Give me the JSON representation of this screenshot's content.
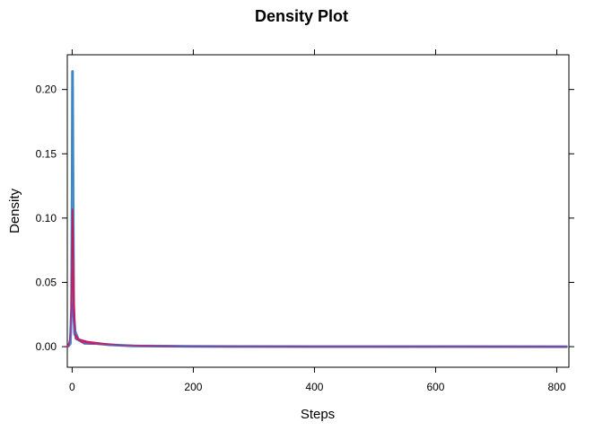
{
  "chart_data": {
    "type": "line",
    "title": "Density Plot",
    "xlabel": "Steps",
    "ylabel": "Density",
    "xlim": [
      -8,
      820
    ],
    "ylim": [
      -0.016,
      0.227
    ],
    "xticks": [
      0,
      200,
      400,
      600,
      800
    ],
    "xtick_labels": [
      "0",
      "200",
      "400",
      "600",
      "800"
    ],
    "yticks": [
      0.0,
      0.05,
      0.1,
      0.15,
      0.2
    ],
    "ytick_labels": [
      "0.00",
      "0.05",
      "0.10",
      "0.15",
      "0.20"
    ],
    "legend": "none",
    "grid": false,
    "series": [
      {
        "color": "#3a88c8",
        "width": 3,
        "points": [
          [
            -7,
            0.0002
          ],
          [
            -3,
            0.003
          ],
          [
            -1,
            0.03
          ],
          [
            0,
            0.12
          ],
          [
            0.6,
            0.214
          ],
          [
            1.2,
            0.15
          ],
          [
            2.5,
            0.03
          ],
          [
            4,
            0.01
          ],
          [
            8,
            0.006
          ],
          [
            20,
            0.003
          ],
          [
            40,
            0.0025
          ],
          [
            60,
            0.0015
          ],
          [
            100,
            0.0006
          ],
          [
            200,
            0.0002
          ],
          [
            400,
            0.0001
          ],
          [
            600,
            0.0001
          ],
          [
            816,
            0.0
          ]
        ]
      },
      {
        "color": "#4a8ed0",
        "width": 1.5,
        "points": [
          [
            -6,
            0.0
          ],
          [
            -2,
            0.002
          ],
          [
            0,
            0.04
          ],
          [
            1,
            0.124
          ],
          [
            2,
            0.08
          ],
          [
            3,
            0.03
          ],
          [
            6,
            0.012
          ],
          [
            12,
            0.005
          ],
          [
            30,
            0.003
          ],
          [
            60,
            0.0015
          ],
          [
            100,
            0.0005
          ],
          [
            300,
            0.0001
          ],
          [
            816,
            0.0
          ]
        ]
      },
      {
        "color": "#c4185a",
        "width": 1.5,
        "points": [
          [
            -10,
            0.0
          ],
          [
            -6,
            0.001
          ],
          [
            -3,
            0.008
          ],
          [
            -1,
            0.04
          ],
          [
            0.5,
            0.107
          ],
          [
            1.5,
            0.09
          ],
          [
            3,
            0.04
          ],
          [
            5,
            0.01
          ],
          [
            10,
            0.006
          ],
          [
            25,
            0.004
          ],
          [
            50,
            0.0025
          ],
          [
            80,
            0.0012
          ],
          [
            120,
            0.0005
          ],
          [
            180,
            0.0002
          ],
          [
            400,
            0.0001
          ],
          [
            600,
            0.0001
          ],
          [
            816,
            0.0
          ]
        ]
      },
      {
        "color": "#c82066",
        "width": 1.5,
        "points": [
          [
            -8,
            0.0
          ],
          [
            -4,
            0.004
          ],
          [
            -2,
            0.02
          ],
          [
            0,
            0.063
          ],
          [
            1,
            0.05
          ],
          [
            3,
            0.02
          ],
          [
            6,
            0.006
          ],
          [
            15,
            0.004
          ],
          [
            40,
            0.002
          ],
          [
            90,
            0.001
          ],
          [
            180,
            0.0002
          ],
          [
            500,
            0.0001
          ],
          [
            816,
            0.0
          ]
        ]
      },
      {
        "color": "#7a4aa8",
        "width": 1,
        "points": [
          [
            -5,
            0.0
          ],
          [
            0,
            0.034
          ],
          [
            2,
            0.02
          ],
          [
            5,
            0.006
          ],
          [
            20,
            0.002
          ],
          [
            200,
            0.0002
          ],
          [
            816,
            0.0
          ]
        ]
      }
    ]
  }
}
